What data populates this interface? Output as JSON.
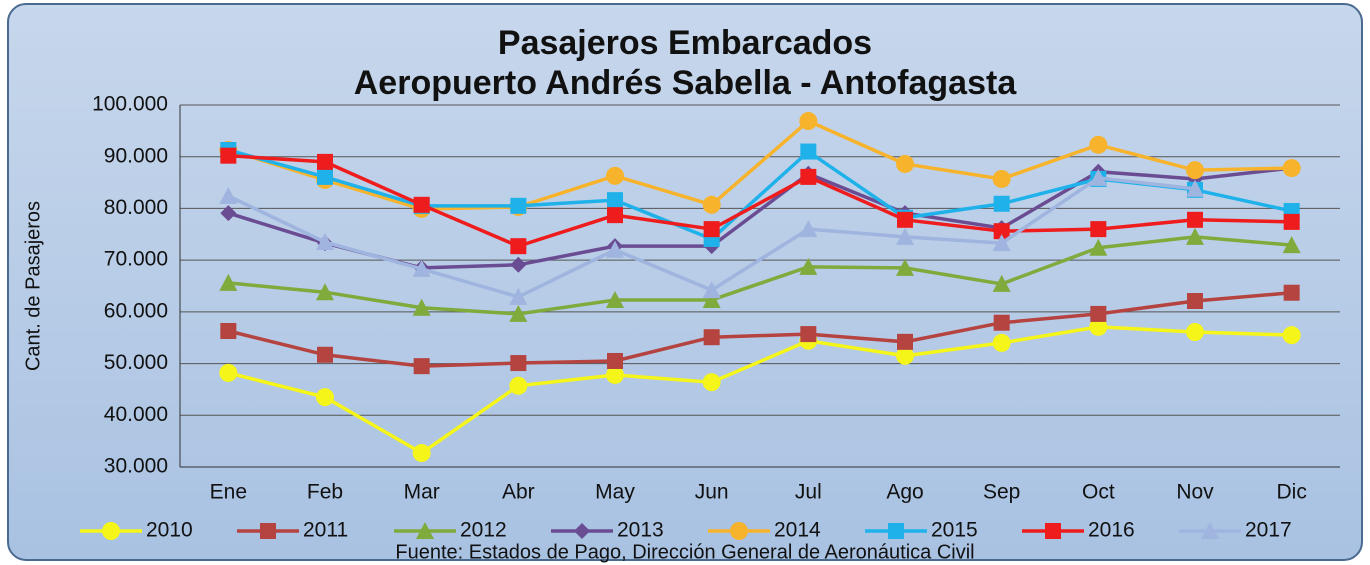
{
  "chart_data": {
    "type": "line",
    "title": "Pasajeros Embarcados",
    "subtitle": "Aeropuerto Andrés Sabella - Antofagasta",
    "ylabel": "Cant. de Pasajeros",
    "source": "Fuente: Estados de Pago, Dirección General de Aeronáutica Civil",
    "categories": [
      "Ene",
      "Feb",
      "Mar",
      "Abr",
      "May",
      "Jun",
      "Jul",
      "Ago",
      "Sep",
      "Oct",
      "Nov",
      "Dic"
    ],
    "ylim": [
      30000,
      100000
    ],
    "yticks": [
      {
        "value": 30000,
        "label": "30.000"
      },
      {
        "value": 40000,
        "label": "40.000"
      },
      {
        "value": 50000,
        "label": "50.000"
      },
      {
        "value": 60000,
        "label": "60.000"
      },
      {
        "value": 70000,
        "label": "70.000"
      },
      {
        "value": 80000,
        "label": "80.000"
      },
      {
        "value": 90000,
        "label": "90.000"
      },
      {
        "value": 100000,
        "label": "100.000"
      }
    ],
    "grid": true,
    "legend": "bottom",
    "series": [
      {
        "name": "2010",
        "color": "#f5f51a",
        "marker": "circle",
        "values": [
          48200,
          43500,
          32700,
          45700,
          47800,
          46400,
          54400,
          51500,
          54000,
          57100,
          56100,
          55500
        ]
      },
      {
        "name": "2011",
        "color": "#b5433f",
        "marker": "square",
        "values": [
          56300,
          51700,
          49500,
          50100,
          50500,
          55100,
          55700,
          54200,
          57900,
          59600,
          62100,
          63700
        ]
      },
      {
        "name": "2012",
        "color": "#7faa3c",
        "marker": "triangle",
        "values": [
          65600,
          63800,
          60800,
          59600,
          62300,
          62300,
          68700,
          68500,
          65400,
          72400,
          74500,
          72900
        ]
      },
      {
        "name": "2013",
        "color": "#6a4c93",
        "marker": "diamond",
        "values": [
          79100,
          73300,
          68500,
          69100,
          72700,
          72700,
          86700,
          79100,
          76200,
          87100,
          85700,
          87800
        ]
      },
      {
        "name": "2014",
        "color": "#f7b32b",
        "marker": "circle",
        "values": [
          91300,
          85500,
          79900,
          80300,
          86300,
          80700,
          96900,
          88600,
          85700,
          92300,
          87400,
          87800
        ]
      },
      {
        "name": "2015",
        "color": "#1fb2ea",
        "marker": "square",
        "values": [
          91300,
          86100,
          80500,
          80500,
          81600,
          74100,
          91000,
          78200,
          80900,
          85700,
          83600,
          79500
        ]
      },
      {
        "name": "2016",
        "color": "#ee1c1c",
        "marker": "square",
        "values": [
          90200,
          89000,
          80700,
          72700,
          78700,
          76000,
          86100,
          77800,
          75600,
          76000,
          77800,
          77400
        ]
      },
      {
        "name": "2017",
        "color": "#9fb4de",
        "marker": "triangle",
        "values": [
          82400,
          73500,
          68300,
          62900,
          72000,
          64200,
          76000,
          74500,
          73300,
          85900,
          83800,
          null
        ]
      }
    ]
  }
}
